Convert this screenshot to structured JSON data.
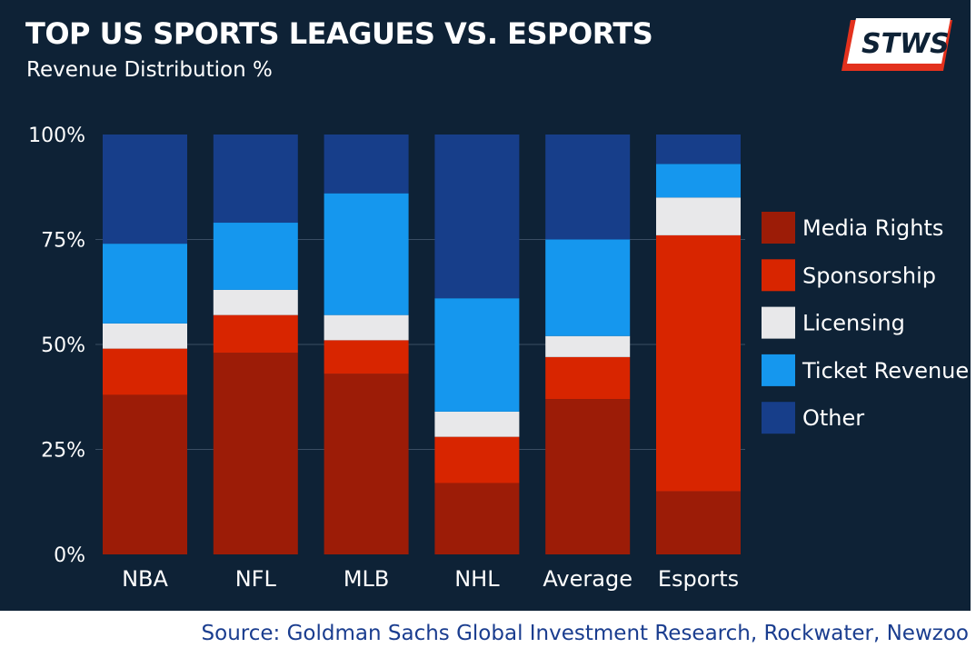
{
  "header": {
    "title": "TOP US SPORTS LEAGUES VS. ESPORTS",
    "subtitle": "Revenue Distribution %"
  },
  "logo": {
    "text": "STWS"
  },
  "source": "Source: Goldman Sachs Global Investment Research, Rockwater, Newzoo",
  "colors": {
    "background": "#0e2236",
    "media_rights": "#9c1c07",
    "sponsorship": "#d82500",
    "licensing": "#e8e8ea",
    "ticket_revenue": "#1597ee",
    "other": "#173e8a",
    "logo_red": "#e3311d"
  },
  "chart_data": {
    "type": "bar",
    "stacked": true,
    "title": "TOP US SPORTS LEAGUES VS. ESPORTS",
    "subtitle": "Revenue Distribution %",
    "categories": [
      "NBA",
      "NFL",
      "MLB",
      "NHL",
      "Average",
      "Esports"
    ],
    "y_ticks": [
      "0%",
      "25%",
      "50%",
      "75%",
      "100%"
    ],
    "ylim": [
      0,
      100
    ],
    "legend_position": "right",
    "series": [
      {
        "name": "Media Rights",
        "color": "#9c1c07",
        "values": [
          38,
          48,
          43,
          17,
          37,
          15
        ]
      },
      {
        "name": "Sponsorship",
        "color": "#d82500",
        "values": [
          11,
          9,
          8,
          11,
          10,
          61
        ]
      },
      {
        "name": "Licensing",
        "color": "#e8e8ea",
        "values": [
          6,
          6,
          6,
          6,
          5,
          9
        ]
      },
      {
        "name": "Ticket Revenue",
        "color": "#1597ee",
        "values": [
          19,
          16,
          29,
          27,
          23,
          8
        ]
      },
      {
        "name": "Other",
        "color": "#173e8a",
        "values": [
          26,
          21,
          14,
          39,
          25,
          7
        ]
      }
    ]
  }
}
